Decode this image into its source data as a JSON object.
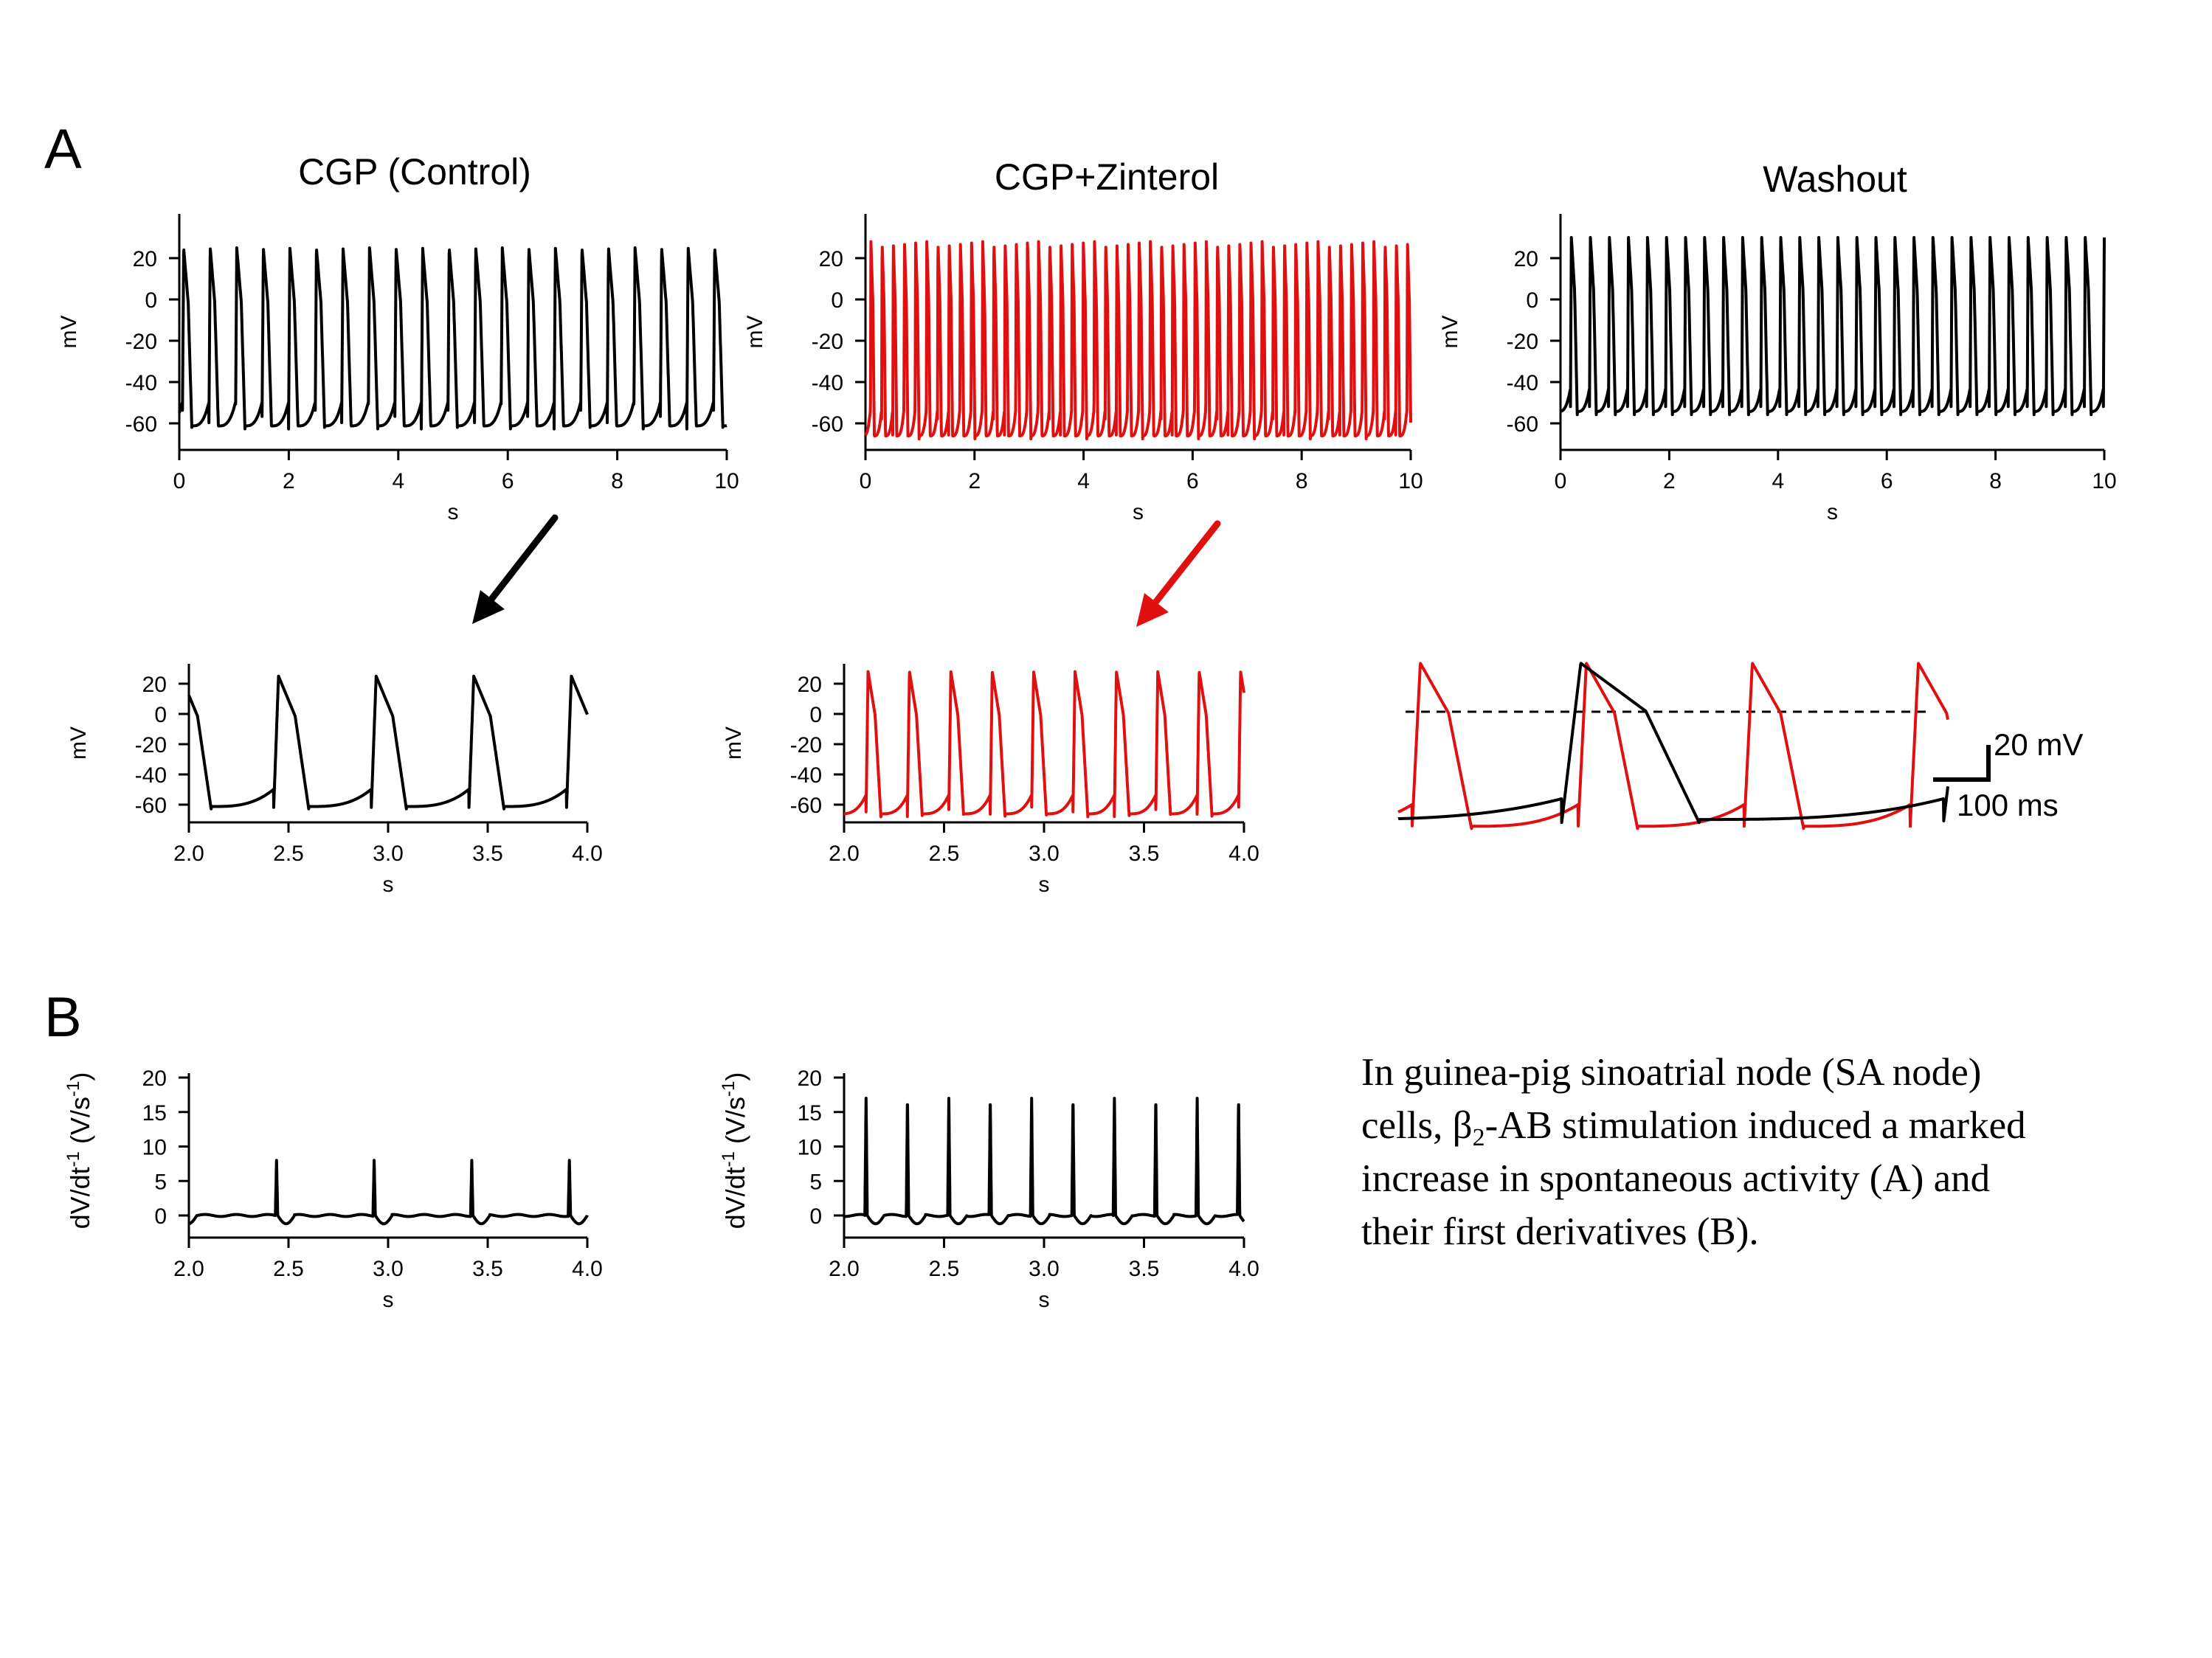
{
  "panel_labels": {
    "a": "A",
    "b": "B"
  },
  "titles": {
    "control": "CGP (Control)",
    "zinterol": "CGP+Zinterol",
    "washout": "Washout"
  },
  "caption": {
    "line1": "In guinea-pig sinoatrial node (SA node)",
    "line2_pre": "cells, β",
    "line2_sub": "2",
    "line2_post": "-AB stimulation induced a marked",
    "line3": "increase in spontaneous activity (A) and",
    "line4": "their first derivatives (B)."
  },
  "scale_bar": {
    "voltage": "20 mV",
    "time": "100 ms"
  },
  "colors": {
    "control": "#000000",
    "zinterol": "#e01010",
    "axis": "#000000"
  },
  "chart_data": [
    {
      "id": "top-control",
      "type": "line",
      "title": "CGP (Control)",
      "xlabel": "s",
      "ylabel": "mV",
      "xlim": [
        0,
        10
      ],
      "ylim": [
        -65,
        30
      ],
      "xticks": [
        "0",
        "2",
        "4",
        "6",
        "8",
        "10"
      ],
      "yticks": [
        "20",
        "0",
        "-20",
        "-40",
        "-60"
      ],
      "series": [
        {
          "color": "#000000",
          "trace": {
            "v_min": -63,
            "v_peak": 25,
            "period_s": 0.485,
            "first_peak_s": 0.08
          }
        }
      ]
    },
    {
      "id": "top-zinterol",
      "type": "line",
      "title": "CGP+Zinterol",
      "xlabel": "s",
      "ylabel": "mV",
      "xlim": [
        0,
        10
      ],
      "ylim": [
        -70,
        30
      ],
      "xticks": [
        "0",
        "2",
        "4",
        "6",
        "8",
        "10"
      ],
      "yticks": [
        "20",
        "0",
        "-20",
        "-40",
        "-60"
      ],
      "series": [
        {
          "color": "#e01010",
          "trace": {
            "v_min": -68,
            "v_peak": 28,
            "period_s": 0.205,
            "first_peak_s": 0.1
          }
        }
      ]
    },
    {
      "id": "top-washout",
      "type": "line",
      "title": "Washout",
      "xlabel": "s",
      "ylabel": "mV",
      "xlim": [
        0,
        10
      ],
      "ylim": [
        -65,
        30
      ],
      "xticks": [
        "0",
        "2",
        "4",
        "6",
        "8",
        "10"
      ],
      "yticks": [
        "20",
        "0",
        "-20",
        "-40",
        "-60"
      ],
      "series": [
        {
          "color": "#000000",
          "trace": {
            "v_min": -56,
            "v_peak": 30,
            "period_s": 0.35,
            "first_peak_s": 0.2
          }
        }
      ]
    },
    {
      "id": "mid-control",
      "type": "line",
      "xlabel": "s",
      "ylabel": "mV",
      "xlim": [
        2.0,
        4.0
      ],
      "ylim": [
        -70,
        30
      ],
      "xticks": [
        "2.0",
        "2.5",
        "3.0",
        "3.5",
        "4.0"
      ],
      "yticks": [
        "20",
        "0",
        "-20",
        "-40",
        "-60"
      ],
      "series": [
        {
          "color": "#000000",
          "trace": {
            "v_min": -63,
            "v_peak": 25,
            "period_s": 0.49,
            "first_peak_s": 1.96
          }
        }
      ]
    },
    {
      "id": "mid-zinterol",
      "type": "line",
      "xlabel": "s",
      "ylabel": "mV",
      "xlim": [
        2.0,
        4.0
      ],
      "ylim": [
        -70,
        30
      ],
      "xticks": [
        "2.0",
        "2.5",
        "3.0",
        "3.5",
        "4.0"
      ],
      "yticks": [
        "20",
        "0",
        "-20",
        "-40",
        "-60"
      ],
      "series": [
        {
          "color": "#e01010",
          "trace": {
            "v_min": -68,
            "v_peak": 28,
            "period_s": 0.207,
            "first_peak_s": 2.12
          }
        }
      ]
    },
    {
      "id": "overlay",
      "type": "line",
      "axes": "none",
      "scale_bar": {
        "voltage_mV": 20,
        "time_ms": 100
      },
      "zero_line_mV": 0,
      "series": [
        {
          "color": "#e01010",
          "trace": {
            "v_min": -68,
            "v_peak": 28,
            "period_ms": 300,
            "first_peak_ms": 40
          }
        },
        {
          "color": "#000000",
          "trace": {
            "v_min": -64,
            "v_peak": 28,
            "period_ms": 690,
            "first_peak_ms": 330
          }
        }
      ]
    },
    {
      "id": "deriv-control",
      "type": "line",
      "xlabel": "s",
      "ylabel": "dV/dt-1 (V/s-1)",
      "xlim": [
        2.0,
        4.0
      ],
      "ylim": [
        -2,
        20
      ],
      "xticks": [
        "2.0",
        "2.5",
        "3.0",
        "3.5",
        "4.0"
      ],
      "yticks": [
        "20",
        "15",
        "10",
        "5",
        "0"
      ],
      "series": [
        {
          "color": "#000000",
          "spikes": {
            "peak": 8,
            "period_s": 0.49,
            "first_spike_s": 2.44
          }
        }
      ]
    },
    {
      "id": "deriv-zinterol",
      "type": "line",
      "xlabel": "s",
      "ylabel": "dV/dt-1 (V/s-1)",
      "xlim": [
        2.0,
        4.0
      ],
      "ylim": [
        -2,
        20
      ],
      "xticks": [
        "2.0",
        "2.5",
        "3.0",
        "3.5",
        "4.0"
      ],
      "yticks": [
        "20",
        "15",
        "10",
        "5",
        "0"
      ],
      "series": [
        {
          "color": "#000000",
          "spikes": {
            "peak": 17,
            "period_s": 0.207,
            "first_spike_s": 2.11
          }
        }
      ]
    }
  ]
}
